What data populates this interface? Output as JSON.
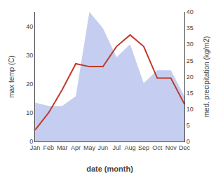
{
  "chart_data": {
    "type": "line",
    "xlabel": "date (month)",
    "ylabel": "max temp (C)",
    "y2label": "med. precipitation (kg/m2)",
    "categories": [
      "Jan",
      "Feb",
      "Mar",
      "Apr",
      "May",
      "Jun",
      "Jul",
      "Aug",
      "Sep",
      "Oct",
      "Nov",
      "Dec"
    ],
    "series": [
      {
        "type": "area",
        "axis": "y2",
        "color": "#c5cef0",
        "values": [
          12,
          11,
          11,
          14,
          40,
          35,
          26,
          30,
          18,
          22,
          22,
          14
        ]
      },
      {
        "type": "line",
        "color": "#c0392b",
        "values": [
          4,
          10,
          18,
          27,
          26,
          26,
          33,
          37,
          33,
          22,
          22,
          13
        ]
      }
    ],
    "ylim": [
      0,
      45
    ],
    "yticks": [
      0,
      10,
      20,
      30,
      40
    ],
    "y2lim": [
      0,
      40
    ],
    "y2ticks": [
      0,
      5,
      10,
      15,
      20,
      25,
      30,
      35,
      40
    ],
    "grid": false
  }
}
